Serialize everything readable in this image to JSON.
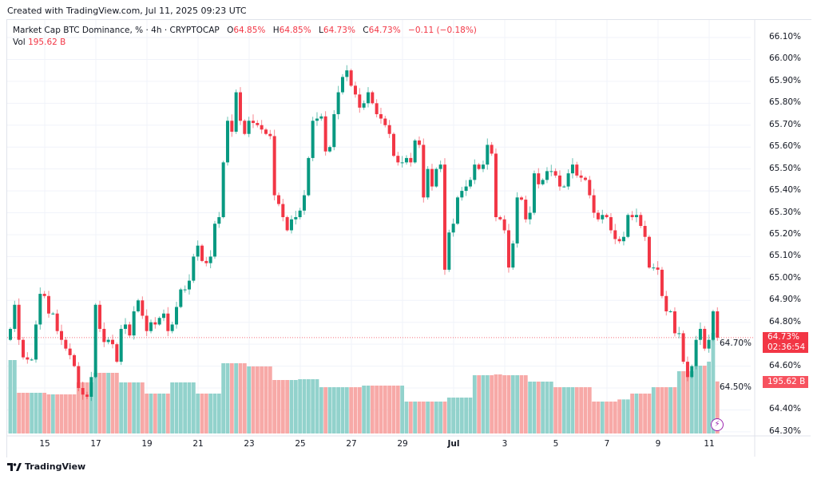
{
  "header": {
    "created": "Created with TradingView.com, Jul 11, 2025 09:23 UTC",
    "symbol": "Market Cap BTC Dominance, % · 4h · CRYPTOCAP",
    "o_label": "O",
    "o": "64.85%",
    "h_label": "H",
    "h": "64.85%",
    "l_label": "L",
    "l": "64.73%",
    "c_label": "C",
    "c": "64.73%",
    "change": "−0.11 (−0.18%)",
    "vol_label": "Vol",
    "vol": "195.62 B"
  },
  "price_box": {
    "price": "64.73%",
    "countdown": "02:36:54"
  },
  "volume_box": "195.62 B",
  "footer": {
    "logo": "TradingView"
  },
  "colors": {
    "up": "#089981",
    "down": "#f23645",
    "up_vol": "#92d2cc",
    "down_vol": "#f7a9a7",
    "grid": "#f0f3fa"
  },
  "icons": {
    "alert": "lightning-icon",
    "logo": "tradingview-logo-icon"
  },
  "chart_data": {
    "type": "candlestick",
    "interval": "4h",
    "y_ticks": [
      "66.10%",
      "66.00%",
      "65.90%",
      "65.80%",
      "65.70%",
      "65.60%",
      "65.50%",
      "65.40%",
      "65.30%",
      "65.20%",
      "65.10%",
      "65.00%",
      "64.90%",
      "64.80%",
      "64.70%",
      "64.60%",
      "64.50%",
      "64.40%",
      "64.30%"
    ],
    "ylim": [
      64.3,
      66.1
    ],
    "x_ticks": [
      "15",
      "17",
      "19",
      "21",
      "23",
      "25",
      "27",
      "29",
      "Jul",
      "3",
      "5",
      "7",
      "9",
      "11"
    ],
    "grid": true,
    "first_open": 64.72,
    "closes": [
      64.77,
      64.88,
      64.72,
      64.64,
      64.63,
      64.63,
      64.79,
      64.93,
      64.92,
      64.84,
      64.84,
      64.76,
      64.72,
      64.68,
      64.65,
      64.6,
      64.5,
      64.47,
      64.46,
      64.55,
      64.88,
      64.77,
      64.71,
      64.72,
      64.7,
      64.62,
      64.77,
      64.79,
      64.74,
      64.85,
      64.9,
      64.83,
      64.76,
      64.8,
      64.79,
      64.82,
      64.84,
      64.76,
      64.79,
      64.87,
      64.95,
      64.95,
      64.99,
      65.1,
      65.15,
      65.08,
      65.07,
      65.1,
      65.25,
      65.28,
      65.53,
      65.72,
      65.67,
      65.85,
      65.72,
      65.66,
      65.72,
      65.71,
      65.7,
      65.68,
      65.66,
      65.65,
      65.38,
      65.34,
      65.28,
      65.22,
      65.27,
      65.28,
      65.31,
      65.38,
      65.55,
      65.72,
      65.73,
      65.74,
      65.58,
      65.6,
      65.75,
      65.85,
      65.92,
      65.95,
      65.88,
      65.84,
      65.78,
      65.8,
      65.85,
      65.8,
      65.75,
      65.73,
      65.7,
      65.66,
      65.56,
      65.53,
      65.53,
      65.55,
      65.53,
      65.63,
      65.61,
      65.37,
      65.5,
      65.42,
      65.5,
      65.52,
      65.04,
      65.21,
      65.25,
      65.37,
      65.4,
      65.42,
      65.45,
      65.52,
      65.5,
      65.52,
      65.61,
      65.57,
      65.28,
      65.27,
      65.22,
      65.05,
      65.16,
      65.37,
      65.36,
      65.27,
      65.3,
      65.48,
      65.43,
      65.45,
      65.49,
      65.49,
      65.47,
      65.42,
      65.42,
      65.48,
      65.52,
      65.47,
      65.46,
      65.45,
      65.38,
      65.3,
      65.27,
      65.29,
      65.28,
      65.22,
      65.18,
      65.17,
      65.19,
      65.29,
      65.28,
      65.29,
      65.24,
      65.19,
      65.05,
      65.05,
      65.04,
      64.92,
      64.85,
      64.85,
      64.75,
      64.75,
      64.62,
      64.55,
      64.6,
      64.72,
      64.77,
      64.68,
      64.72,
      64.85,
      64.73
    ],
    "volumes_b": [
      276,
      276,
      153,
      153,
      153,
      153,
      153,
      153,
      153,
      147,
      147,
      147,
      147,
      147,
      147,
      147,
      192,
      192,
      192,
      192,
      228,
      228,
      228,
      228,
      228,
      228,
      192,
      192,
      192,
      192,
      192,
      192,
      150,
      150,
      150,
      150,
      150,
      150,
      192,
      192,
      192,
      192,
      192,
      192,
      150,
      150,
      150,
      150,
      150,
      150,
      264,
      264,
      264,
      264,
      264,
      264,
      252,
      252,
      252,
      252,
      252,
      252,
      201,
      201,
      201,
      201,
      201,
      201,
      204,
      204,
      204,
      204,
      204,
      174,
      174,
      174,
      174,
      174,
      174,
      174,
      174,
      174,
      174,
      180,
      180,
      180,
      180,
      180,
      180,
      180,
      180,
      180,
      180,
      120,
      120,
      120,
      120,
      120,
      120,
      120,
      120,
      120,
      120,
      135,
      135,
      135,
      135,
      135,
      135,
      219,
      219,
      219,
      219,
      219,
      222,
      222,
      219,
      219,
      219,
      219,
      219,
      219,
      195,
      195,
      195,
      195,
      195,
      195,
      174,
      174,
      174,
      174,
      174,
      174,
      174,
      174,
      174,
      120,
      120,
      120,
      120,
      120,
      120,
      128,
      128,
      128,
      150,
      150,
      150,
      150,
      150,
      174,
      174,
      174,
      174,
      174,
      174,
      234,
      234,
      234,
      234,
      255,
      255,
      255,
      270,
      378,
      195.62
    ]
  }
}
